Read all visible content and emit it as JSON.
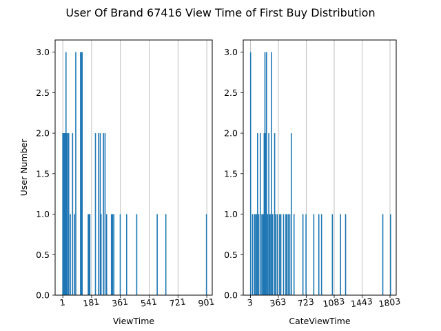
{
  "figure": {
    "title": "User Of Brand 67416 View Time of First Buy Distribution"
  },
  "chart_data": [
    {
      "type": "bar",
      "title": "",
      "xlabel": "ViewTime",
      "ylabel": "User Number",
      "xlim": [
        -47,
        935
      ],
      "ylim": [
        0,
        3.15
      ],
      "xticks": [
        1,
        181,
        361,
        541,
        721,
        901
      ],
      "yticks": [
        0.0,
        0.5,
        1.0,
        1.5,
        2.0,
        2.5,
        3.0
      ],
      "grid": "vertical",
      "color": "#1f77b4",
      "x": [
        1,
        5,
        8,
        11,
        15,
        18,
        21,
        24,
        27,
        30,
        38,
        48,
        62,
        74,
        82,
        112,
        118,
        122,
        160,
        165,
        170,
        205,
        225,
        235,
        240,
        255,
        265,
        275,
        305,
        312,
        320,
        360,
        400,
        463,
        591,
        645,
        899
      ],
      "values": [
        2,
        2,
        2,
        2,
        2,
        2,
        3,
        2,
        2,
        2,
        2,
        1,
        2,
        1,
        3,
        3,
        3,
        3,
        1,
        1,
        1,
        2,
        2,
        2,
        1,
        2,
        2,
        1,
        1,
        1,
        1,
        1,
        1,
        1,
        1,
        1,
        1
      ]
    },
    {
      "type": "bar",
      "title": "",
      "xlabel": "CateViewTime",
      "ylabel": "",
      "xlim": [
        -90,
        1883
      ],
      "ylim": [
        0,
        3.15
      ],
      "xticks": [
        3,
        363,
        723,
        1083,
        1443,
        1803
      ],
      "yticks": [
        0.0,
        0.5,
        1.0,
        1.5,
        2.0,
        2.5,
        3.0
      ],
      "grid": "vertical",
      "color": "#1f77b4",
      "x": [
        5,
        30,
        55,
        70,
        80,
        95,
        110,
        130,
        150,
        165,
        170,
        180,
        190,
        200,
        210,
        225,
        240,
        250,
        265,
        275,
        290,
        315,
        330,
        350,
        380,
        395,
        430,
        460,
        470,
        490,
        510,
        530,
        565,
        680,
        720,
        820,
        885,
        920,
        1060,
        1165,
        1230,
        1710,
        1810
      ],
      "values": [
        3,
        1,
        1,
        1,
        1,
        2,
        1,
        2,
        1,
        1,
        1,
        2,
        3,
        2,
        3,
        1,
        2,
        1,
        1,
        3,
        1,
        2,
        1,
        1,
        1,
        1,
        1,
        1,
        1,
        1,
        1,
        2,
        1,
        1,
        1,
        1,
        1,
        1,
        1,
        1,
        1,
        1,
        1
      ]
    }
  ]
}
